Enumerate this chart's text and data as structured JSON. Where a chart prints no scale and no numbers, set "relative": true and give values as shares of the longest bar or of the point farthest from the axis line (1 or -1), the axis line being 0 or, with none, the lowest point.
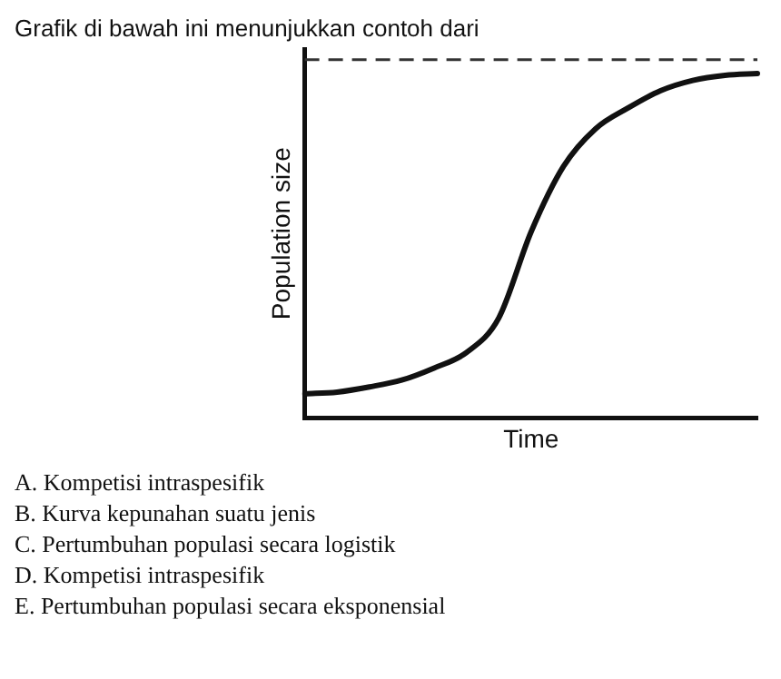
{
  "chart_data": {
    "type": "line",
    "title": "Grafik di bawah ini menunjukkan contoh dari",
    "xlabel": "Time",
    "ylabel": "Population size",
    "relative": true,
    "categories": [
      null,
      null,
      null,
      null,
      null,
      null,
      null,
      null,
      null,
      null,
      null,
      null,
      null,
      null,
      null
    ],
    "series": [
      {
        "color": "#111111",
        "values": [
          0.07,
          0.075,
          0.09,
          0.11,
          0.145,
          0.19,
          0.29,
          0.54,
          0.73,
          0.84,
          0.9,
          0.95,
          0.98,
          0.995,
          1
        ]
      }
    ],
    "ref_lines": [
      {
        "axis": "y",
        "value": 1.04,
        "line_style": "dashed",
        "color": "#333333"
      }
    ],
    "marker": "none",
    "line_style": "solid",
    "grid": false,
    "legend": false,
    "annotations": [
      "A. Kompetisi intraspesifik",
      "B. Kurva kepunahan suatu jenis",
      "C. Pertumbuhan populasi secara logistik",
      "D. Kompetisi intraspesifik",
      "E. Pertumbuhan populasi secara eksponensial"
    ]
  }
}
